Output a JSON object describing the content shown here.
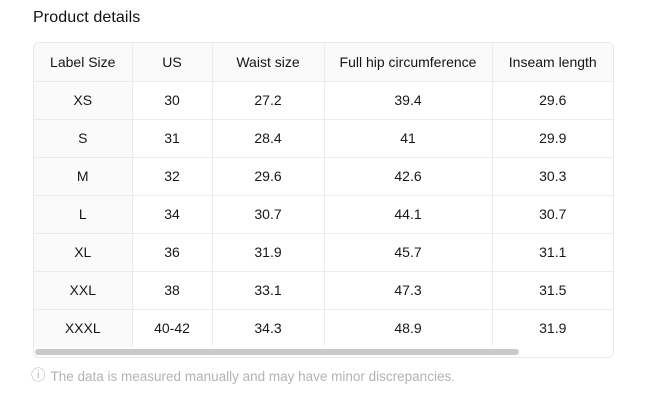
{
  "page": {
    "title": "Product details"
  },
  "table": {
    "columns": [
      "Label Size",
      "US",
      "Waist size",
      "Full hip circumference",
      "Inseam length"
    ],
    "rows": [
      [
        "XS",
        "30",
        "27.2",
        "39.4",
        "29.6"
      ],
      [
        "S",
        "31",
        "28.4",
        "41",
        "29.9"
      ],
      [
        "M",
        "32",
        "29.6",
        "42.6",
        "30.3"
      ],
      [
        "L",
        "34",
        "30.7",
        "44.1",
        "30.7"
      ],
      [
        "XL",
        "36",
        "31.9",
        "45.7",
        "31.1"
      ],
      [
        "XXL",
        "38",
        "33.1",
        "47.3",
        "31.5"
      ],
      [
        "XXXL",
        "40-42",
        "34.3",
        "48.9",
        "31.9"
      ]
    ]
  },
  "scrollbar": {
    "orientation": "horizontal",
    "thumb_color": "#c9c9c9"
  },
  "footer": {
    "icon": "info-icon",
    "icon_glyph": "ⓘ",
    "text": "The data is measured manually and may have minor discrepancies."
  },
  "colors": {
    "header_background": "#fafafa",
    "first_column_background": "#fafafa",
    "cell_border": "#ececec",
    "footer_text": "#b3b3b6"
  }
}
